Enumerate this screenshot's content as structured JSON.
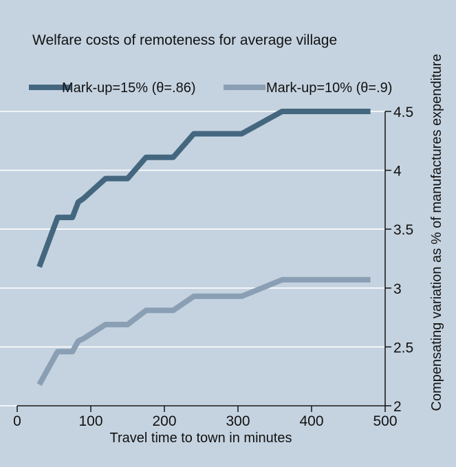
{
  "chart_data": {
    "type": "line",
    "title": "Welfare costs of remoteness for average village",
    "xlabel": "Travel time to town in minutes",
    "ylabel": "Compensating variation as % of manufactures expenditure",
    "xlim": [
      0,
      500
    ],
    "ylim": [
      2,
      4.5
    ],
    "xticks": [
      "0",
      "100",
      "200",
      "300",
      "400",
      "500"
    ],
    "yticks": [
      "2",
      "2.5",
      "3",
      "3.5",
      "4",
      "4.5"
    ],
    "grid": "horizontal",
    "legend_position": "top",
    "y_axis_side": "right",
    "colors": {
      "background": "#c5d3e0",
      "series1": "#44677f",
      "series2": "#8a9fb4",
      "grid": "#ffffff",
      "axis": "#111111"
    },
    "series": [
      {
        "name": "Mark-up=15% (θ=.86)",
        "x": [
          30,
          55,
          75,
          83,
          90,
          120,
          150,
          175,
          212,
          240,
          305,
          360,
          480
        ],
        "y": [
          3.18,
          3.6,
          3.6,
          3.73,
          3.76,
          3.93,
          3.93,
          4.11,
          4.11,
          4.31,
          4.31,
          4.5,
          4.5
        ]
      },
      {
        "name": "Mark-up=10% (θ=.9)",
        "x": [
          30,
          55,
          75,
          83,
          90,
          120,
          150,
          175,
          212,
          240,
          305,
          360,
          480
        ],
        "y": [
          2.18,
          2.46,
          2.46,
          2.55,
          2.57,
          2.69,
          2.69,
          2.81,
          2.81,
          2.93,
          2.93,
          3.07,
          3.07
        ]
      }
    ]
  }
}
